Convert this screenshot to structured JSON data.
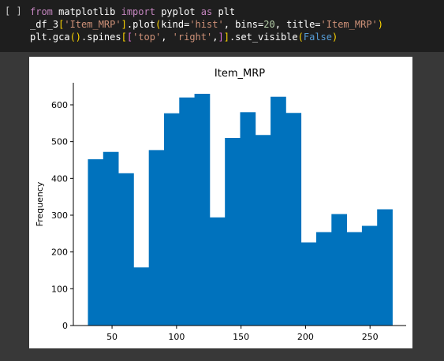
{
  "cell": {
    "prompt": "[ ]",
    "code_lines": [
      [
        {
          "t": "from",
          "c": "#c586c0"
        },
        {
          "t": " matplotlib ",
          "c": "#ffffff"
        },
        {
          "t": "import",
          "c": "#c586c0"
        },
        {
          "t": " pyplot ",
          "c": "#ffffff"
        },
        {
          "t": "as",
          "c": "#c586c0"
        },
        {
          "t": " plt",
          "c": "#ffffff"
        }
      ],
      [
        {
          "t": "_df_3",
          "c": "#ffffff"
        },
        {
          "t": "[",
          "c": "#ffd700"
        },
        {
          "t": "'Item_MRP'",
          "c": "#ce9178"
        },
        {
          "t": "]",
          "c": "#ffd700"
        },
        {
          "t": ".plot",
          "c": "#ffffff"
        },
        {
          "t": "(",
          "c": "#ffd700"
        },
        {
          "t": "kind=",
          "c": "#ffffff"
        },
        {
          "t": "'hist'",
          "c": "#ce9178"
        },
        {
          "t": ", bins=",
          "c": "#ffffff"
        },
        {
          "t": "20",
          "c": "#b5cea8"
        },
        {
          "t": ", title=",
          "c": "#ffffff"
        },
        {
          "t": "'Item_MRP'",
          "c": "#ce9178"
        },
        {
          "t": ")",
          "c": "#ffd700"
        }
      ],
      [
        {
          "t": "plt.gca",
          "c": "#ffffff"
        },
        {
          "t": "()",
          "c": "#ffd700"
        },
        {
          "t": ".spines",
          "c": "#ffffff"
        },
        {
          "t": "[",
          "c": "#ffd700"
        },
        {
          "t": "[",
          "c": "#da70d6"
        },
        {
          "t": "'top'",
          "c": "#ce9178"
        },
        {
          "t": ", ",
          "c": "#ffffff"
        },
        {
          "t": "'right'",
          "c": "#ce9178"
        },
        {
          "t": ",",
          "c": "#ffffff"
        },
        {
          "t": "]",
          "c": "#da70d6"
        },
        {
          "t": "]",
          "c": "#ffd700"
        },
        {
          "t": ".set_visible",
          "c": "#ffffff"
        },
        {
          "t": "(",
          "c": "#ffd700"
        },
        {
          "t": "False",
          "c": "#569cd6"
        },
        {
          "t": ")",
          "c": "#ffd700"
        }
      ]
    ]
  },
  "colors": {
    "bar": "#0072bd",
    "axis": "#000000",
    "text": "#000000"
  },
  "chart_data": {
    "type": "bar",
    "title": "Item_MRP",
    "xlabel": "",
    "ylabel": "Frequency",
    "bin_edges": [
      31.3,
      43.1,
      54.9,
      66.7,
      78.5,
      90.3,
      102.1,
      113.9,
      125.7,
      137.5,
      149.3,
      161.1,
      172.9,
      184.7,
      196.5,
      208.3,
      220.1,
      231.9,
      243.7,
      255.5,
      267.3
    ],
    "values": [
      452,
      472,
      414,
      158,
      477,
      577,
      620,
      630,
      294,
      510,
      580,
      518,
      622,
      578,
      226,
      254,
      303,
      254,
      271,
      316
    ],
    "xlim": [
      20,
      278
    ],
    "ylim": [
      0,
      660
    ],
    "xticks": [
      50,
      100,
      150,
      200,
      250
    ],
    "yticks": [
      0,
      100,
      200,
      300,
      400,
      500,
      600
    ],
    "grid": false,
    "spines_visible": [
      "left",
      "bottom"
    ]
  }
}
